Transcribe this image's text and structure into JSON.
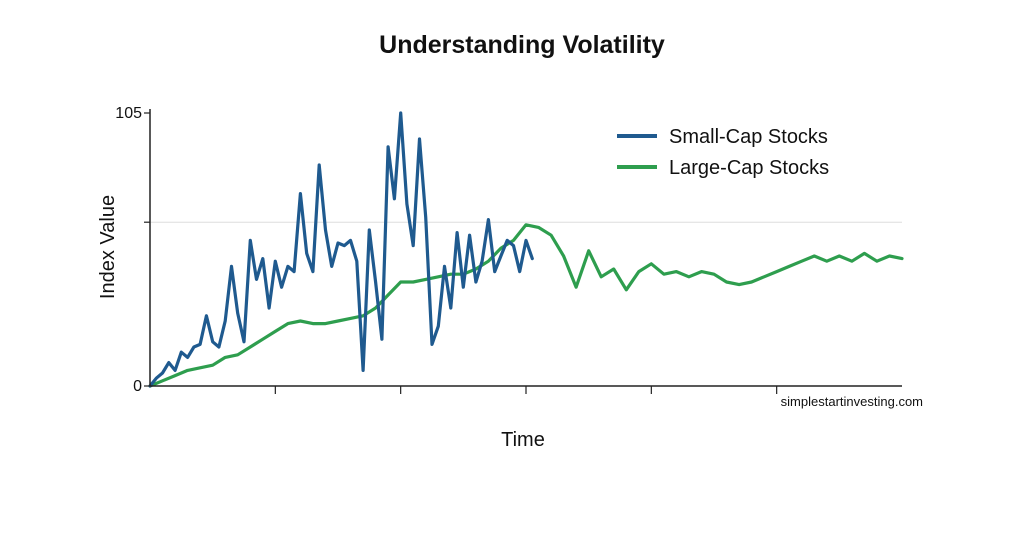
{
  "chart_data": {
    "type": "line",
    "title": "Understanding Volatility",
    "xlabel": "Time",
    "ylabel": "Index Value",
    "ylim": [
      0,
      105
    ],
    "yticks": [
      {
        "value": 0,
        "label": "0"
      },
      {
        "value": 63,
        "label": ""
      },
      {
        "value": 105,
        "label": "105"
      }
    ],
    "x_tick_count": 5,
    "grid": "single faint horizontal line at the unlabeled y tick",
    "legend_position": "top-right",
    "source": "simplestartinvesting.com",
    "colors": {
      "small_cap": "#1f5a8f",
      "large_cap": "#2e9e4e",
      "axis": "#222222",
      "grid": "#dddddd"
    },
    "xlim": [
      0,
      120
    ],
    "series": [
      {
        "name": "Small-Cap Stocks",
        "key": "small_cap",
        "color": "#1f5a8f",
        "x": [
          0,
          1,
          2,
          3,
          4,
          5,
          6,
          7,
          8,
          9,
          10,
          11,
          12,
          13,
          14,
          15,
          16,
          17,
          18,
          19,
          20,
          21,
          22,
          23,
          24,
          25,
          26,
          27,
          28,
          29,
          30,
          31,
          32,
          33,
          34,
          35,
          36,
          37,
          38,
          39,
          40,
          41,
          42,
          43,
          44,
          45,
          46,
          47,
          48,
          49,
          50,
          51,
          52,
          53,
          54,
          55,
          56,
          57,
          58,
          59,
          60,
          61
        ],
        "values": [
          0,
          3,
          5,
          9,
          6,
          13,
          11,
          15,
          16,
          27,
          17,
          15,
          25,
          46,
          28,
          17,
          56,
          41,
          49,
          30,
          48,
          38,
          46,
          44,
          74,
          51,
          44,
          85,
          60,
          46,
          55,
          54,
          56,
          48,
          6,
          60,
          40,
          18,
          92,
          72,
          105,
          70,
          54,
          95,
          65,
          16,
          23,
          46,
          30,
          59,
          38,
          58,
          40,
          48,
          64,
          44,
          50,
          56,
          54,
          44,
          56,
          49
        ]
      },
      {
        "name": "Large-Cap Stocks",
        "key": "large_cap",
        "color": "#2e9e4e",
        "x": [
          0,
          2,
          4,
          6,
          8,
          10,
          12,
          14,
          16,
          18,
          20,
          22,
          24,
          26,
          28,
          30,
          32,
          34,
          36,
          38,
          40,
          42,
          44,
          46,
          48,
          50,
          52,
          54,
          56,
          58,
          60,
          62,
          64,
          66,
          68,
          70,
          72,
          74,
          76,
          78,
          80,
          82,
          84,
          86,
          88,
          90,
          92,
          94,
          96,
          98,
          100,
          102,
          104,
          106,
          108,
          110,
          112,
          114,
          116,
          118,
          120
        ],
        "values": [
          0,
          2,
          4,
          6,
          7,
          8,
          11,
          12,
          15,
          18,
          21,
          24,
          25,
          24,
          24,
          25,
          26,
          27,
          30,
          35,
          40,
          40,
          41,
          42,
          43,
          43,
          45,
          48,
          53,
          56,
          62,
          61,
          58,
          50,
          38,
          52,
          42,
          45,
          37,
          44,
          47,
          43,
          44,
          42,
          44,
          43,
          40,
          39,
          40,
          42,
          44,
          46,
          48,
          50,
          48,
          50,
          48,
          51,
          48,
          50,
          49
        ]
      }
    ]
  }
}
